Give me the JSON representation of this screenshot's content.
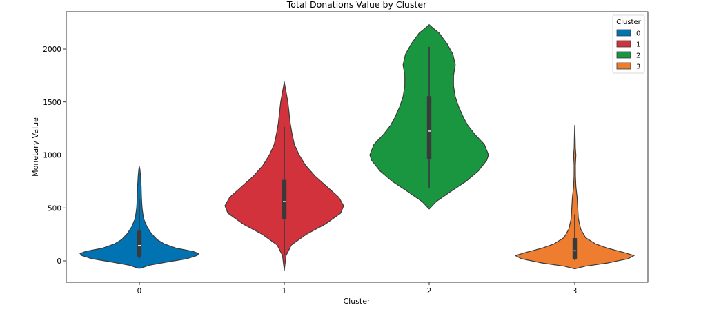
{
  "chart_data": {
    "type": "violin",
    "title": "Total Donations Value by Cluster",
    "xlabel": "Cluster",
    "ylabel": "Monetary Value",
    "categories": [
      "0",
      "1",
      "2",
      "3"
    ],
    "ylim": [
      -200,
      2250
    ],
    "yticks": [
      0,
      500,
      1000,
      1500,
      2000
    ],
    "legend": {
      "title": "Cluster",
      "position": "top-right",
      "entries": [
        {
          "label": "0",
          "color": "#0173b2"
        },
        {
          "label": "1",
          "color": "#d1323b"
        },
        {
          "label": "2",
          "color": "#1a9641"
        },
        {
          "label": "3",
          "color": "#ee7d2f"
        }
      ]
    },
    "series": [
      {
        "name": "0",
        "color": "#0173b2",
        "box": {
          "min": 20,
          "q1": 40,
          "median": 145,
          "q3": 285,
          "max": 580
        },
        "profile": [
          [
            -70,
            0.02
          ],
          [
            -40,
            0.18
          ],
          [
            -10,
            0.48
          ],
          [
            20,
            0.8
          ],
          [
            50,
            0.97
          ],
          [
            70,
            1.0
          ],
          [
            90,
            0.9
          ],
          [
            120,
            0.62
          ],
          [
            160,
            0.42
          ],
          [
            200,
            0.3
          ],
          [
            260,
            0.2
          ],
          [
            320,
            0.13
          ],
          [
            400,
            0.07
          ],
          [
            500,
            0.045
          ],
          [
            600,
            0.035
          ],
          [
            700,
            0.03
          ],
          [
            800,
            0.02
          ],
          [
            860,
            0.01
          ],
          [
            890,
            0.0
          ]
        ]
      },
      {
        "name": "1",
        "color": "#d1323b",
        "box": {
          "min": 50,
          "q1": 395,
          "median": 560,
          "q3": 765,
          "max": 1265
        },
        "profile": [
          [
            -90,
            0.0
          ],
          [
            -40,
            0.01
          ],
          [
            50,
            0.03
          ],
          [
            150,
            0.12
          ],
          [
            250,
            0.37
          ],
          [
            350,
            0.7
          ],
          [
            450,
            0.95
          ],
          [
            520,
            1.0
          ],
          [
            600,
            0.92
          ],
          [
            700,
            0.72
          ],
          [
            800,
            0.52
          ],
          [
            900,
            0.36
          ],
          [
            1000,
            0.25
          ],
          [
            1100,
            0.17
          ],
          [
            1200,
            0.13
          ],
          [
            1300,
            0.1
          ],
          [
            1400,
            0.08
          ],
          [
            1500,
            0.06
          ],
          [
            1580,
            0.035
          ],
          [
            1640,
            0.015
          ],
          [
            1690,
            0.0
          ]
        ]
      },
      {
        "name": "2",
        "color": "#1a9641",
        "box": {
          "min": 690,
          "q1": 960,
          "median": 1225,
          "q3": 1555,
          "max": 2020
        },
        "profile": [
          [
            490,
            0.0
          ],
          [
            560,
            0.12
          ],
          [
            650,
            0.35
          ],
          [
            750,
            0.62
          ],
          [
            850,
            0.83
          ],
          [
            950,
            0.97
          ],
          [
            1000,
            1.0
          ],
          [
            1100,
            0.93
          ],
          [
            1200,
            0.76
          ],
          [
            1280,
            0.65
          ],
          [
            1350,
            0.58
          ],
          [
            1450,
            0.5
          ],
          [
            1550,
            0.44
          ],
          [
            1650,
            0.41
          ],
          [
            1750,
            0.41
          ],
          [
            1850,
            0.44
          ],
          [
            1950,
            0.4
          ],
          [
            2050,
            0.3
          ],
          [
            2150,
            0.17
          ],
          [
            2210,
            0.04
          ],
          [
            2230,
            0.0
          ]
        ]
      },
      {
        "name": "3",
        "color": "#ee7d2f",
        "box": {
          "min": 5,
          "q1": 20,
          "median": 95,
          "q3": 215,
          "max": 440
        },
        "profile": [
          [
            -75,
            0.0
          ],
          [
            -50,
            0.18
          ],
          [
            -20,
            0.55
          ],
          [
            20,
            0.9
          ],
          [
            50,
            1.0
          ],
          [
            80,
            0.82
          ],
          [
            120,
            0.55
          ],
          [
            160,
            0.35
          ],
          [
            220,
            0.18
          ],
          [
            300,
            0.1
          ],
          [
            400,
            0.06
          ],
          [
            500,
            0.05
          ],
          [
            600,
            0.04
          ],
          [
            700,
            0.02
          ],
          [
            800,
            0.012
          ],
          [
            900,
            0.01
          ],
          [
            1000,
            0.02
          ],
          [
            1060,
            0.01
          ],
          [
            1150,
            0.007
          ],
          [
            1230,
            0.004
          ],
          [
            1280,
            0.0
          ]
        ]
      }
    ]
  }
}
